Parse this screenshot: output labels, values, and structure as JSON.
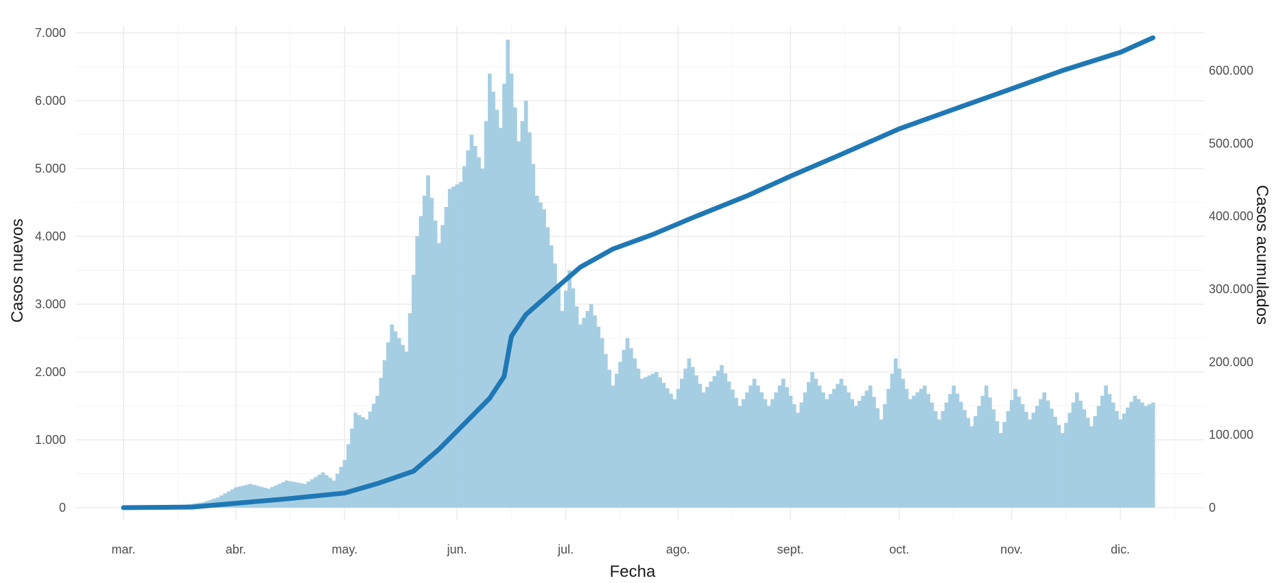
{
  "chart_data": {
    "type": "bar",
    "xlabel": "Fecha",
    "ylabel": "Casos nuevos",
    "y2label": "Casos acumulados",
    "x_tick_labels": [
      "mar.",
      "abr.",
      "may.",
      "jun.",
      "jul.",
      "ago.",
      "sept.",
      "oct.",
      "nov.",
      "dic."
    ],
    "y_tick_labels": [
      "0",
      "1.000",
      "2.000",
      "3.000",
      "4.000",
      "5.000",
      "6.000",
      "7.000"
    ],
    "y2_tick_labels": [
      "0",
      "100.000",
      "200.000",
      "300.000",
      "400.000",
      "500.000",
      "600.000"
    ],
    "ylim": [
      0,
      7000
    ],
    "y2lim": [
      0,
      650000
    ],
    "grid": true,
    "colors": {
      "bars": "#a6cee3",
      "line": "#1f78b4"
    },
    "series": [
      {
        "type": "bar",
        "axis": "left",
        "x": [
          "2020-03-01",
          "2020-03-15",
          "2020-03-23",
          "2020-03-27",
          "2020-04-01",
          "2020-04-05",
          "2020-04-10",
          "2020-04-15",
          "2020-04-20",
          "2020-04-25",
          "2020-04-28",
          "2020-05-01",
          "2020-05-04",
          "2020-05-07",
          "2020-05-10",
          "2020-05-14",
          "2020-05-18",
          "2020-05-21",
          "2020-05-24",
          "2020-05-27",
          "2020-05-30",
          "2020-06-02",
          "2020-06-05",
          "2020-06-08",
          "2020-06-10",
          "2020-06-13",
          "2020-06-15",
          "2020-06-18",
          "2020-06-20",
          "2020-06-23",
          "2020-06-25",
          "2020-06-28",
          "2020-06-30",
          "2020-07-02",
          "2020-07-05",
          "2020-07-08",
          "2020-07-11",
          "2020-07-14",
          "2020-07-18",
          "2020-07-22",
          "2020-07-26",
          "2020-07-31",
          "2020-08-04",
          "2020-08-08",
          "2020-08-13",
          "2020-08-18",
          "2020-08-22",
          "2020-08-26",
          "2020-08-30",
          "2020-09-03",
          "2020-09-07",
          "2020-09-11",
          "2020-09-15",
          "2020-09-19",
          "2020-09-23",
          "2020-09-26",
          "2020-09-30",
          "2020-10-04",
          "2020-10-08",
          "2020-10-12",
          "2020-10-16",
          "2020-10-21",
          "2020-10-25",
          "2020-10-29",
          "2020-11-02",
          "2020-11-06",
          "2020-11-10",
          "2020-11-15",
          "2020-11-19",
          "2020-11-23",
          "2020-11-27",
          "2020-12-01",
          "2020-12-05",
          "2020-12-08",
          "2020-12-10"
        ],
        "values": [
          0,
          20,
          80,
          150,
          300,
          350,
          280,
          400,
          350,
          520,
          400,
          700,
          1400,
          1300,
          1650,
          2700,
          2300,
          4000,
          4900,
          3900,
          4700,
          4800,
          5500,
          5000,
          6400,
          5600,
          6900,
          5400,
          6000,
          4600,
          4400,
          3600,
          2900,
          3500,
          2700,
          3000,
          2500,
          1800,
          2500,
          1900,
          2000,
          1600,
          2200,
          1700,
          2100,
          1500,
          1900,
          1500,
          1900,
          1400,
          2000,
          1600,
          1900,
          1500,
          1800,
          1300,
          2200,
          1600,
          1800,
          1300,
          1800,
          1200,
          1800,
          1100,
          1750,
          1300,
          1700,
          1100,
          1700,
          1200,
          1800,
          1300,
          1650,
          1500,
          1550
        ]
      },
      {
        "type": "line",
        "axis": "right",
        "x": [
          "2020-03-01",
          "2020-03-20",
          "2020-04-01",
          "2020-04-15",
          "2020-05-01",
          "2020-05-10",
          "2020-05-20",
          "2020-05-27",
          "2020-06-03",
          "2020-06-10",
          "2020-06-14",
          "2020-06-16",
          "2020-06-20",
          "2020-06-28",
          "2020-07-05",
          "2020-07-14",
          "2020-07-25",
          "2020-08-05",
          "2020-08-20",
          "2020-09-01",
          "2020-09-15",
          "2020-10-01",
          "2020-10-15",
          "2020-11-01",
          "2020-11-15",
          "2020-12-01",
          "2020-12-10"
        ],
        "values": [
          0,
          800,
          6000,
          12000,
          20000,
          33000,
          50000,
          80000,
          115000,
          150000,
          180000,
          235000,
          265000,
          300000,
          330000,
          355000,
          375000,
          398000,
          428000,
          455000,
          485000,
          520000,
          545000,
          575000,
          600000,
          625000,
          645000
        ]
      }
    ]
  }
}
